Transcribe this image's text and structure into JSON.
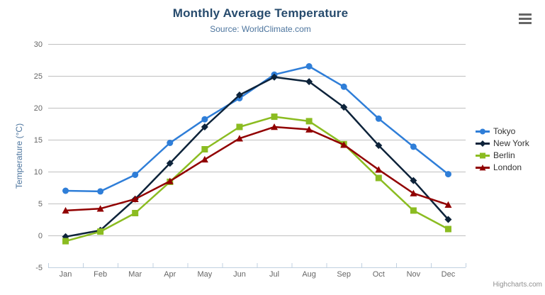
{
  "chart": {
    "title": "Monthly Average Temperature",
    "subtitle": "Source: WorldClimate.com",
    "credits": "Highcharts.com",
    "context_menu_icon": "hamburger-icon"
  },
  "chart_data": {
    "type": "line",
    "title": "Monthly Average Temperature",
    "subtitle": "Source: WorldClimate.com",
    "categories": [
      "Jan",
      "Feb",
      "Mar",
      "Apr",
      "May",
      "Jun",
      "Jul",
      "Aug",
      "Sep",
      "Oct",
      "Nov",
      "Dec"
    ],
    "series": [
      {
        "name": "Tokyo",
        "color": "#2f7ed8",
        "marker": "circle",
        "values": [
          7.0,
          6.9,
          9.5,
          14.5,
          18.2,
          21.5,
          25.2,
          26.5,
          23.3,
          18.3,
          13.9,
          9.6
        ]
      },
      {
        "name": "New York",
        "color": "#0d233a",
        "marker": "diamond",
        "values": [
          -0.2,
          0.8,
          5.7,
          11.3,
          17.0,
          22.0,
          24.8,
          24.1,
          20.1,
          14.1,
          8.6,
          2.5
        ]
      },
      {
        "name": "Berlin",
        "color": "#8bbc21",
        "marker": "square",
        "values": [
          -0.9,
          0.6,
          3.5,
          8.4,
          13.5,
          17.0,
          18.6,
          17.9,
          14.3,
          9.0,
          3.9,
          1.0
        ]
      },
      {
        "name": "London",
        "color": "#910000",
        "marker": "triangle",
        "values": [
          3.9,
          4.2,
          5.7,
          8.5,
          11.9,
          15.2,
          17.0,
          16.6,
          14.2,
          10.3,
          6.6,
          4.8
        ]
      }
    ],
    "xlabel": "",
    "ylabel": "Temperature (°C)",
    "ylim": [
      -5,
      30
    ],
    "yticks": [
      -5,
      0,
      5,
      10,
      15,
      20,
      25,
      30
    ],
    "grid": true,
    "legend_position": "right",
    "grid_color": "#C0C0C0",
    "axis_line_color": "#C0D0E0",
    "tick_label_color": "#666666"
  }
}
